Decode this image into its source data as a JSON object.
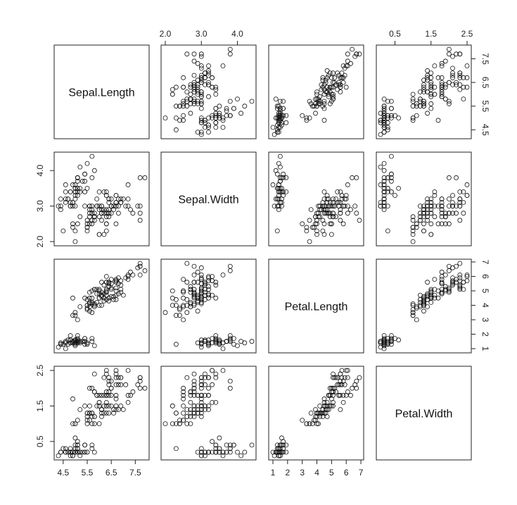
{
  "chart_data": {
    "type": "scatter",
    "variables": [
      "Sepal.Length",
      "Sepal.Width",
      "Petal.Length",
      "Petal.Width"
    ],
    "axes": {
      "Sepal.Length": {
        "range": [
          4.3,
          7.9
        ],
        "ticks": [
          4.5,
          5.5,
          6.5,
          7.5
        ],
        "tick_labels": [
          "4.5",
          "5.5",
          "6.5",
          "7.5"
        ]
      },
      "Sepal.Width": {
        "range": [
          2.0,
          4.4
        ],
        "ticks": [
          2.0,
          3.0,
          4.0
        ],
        "tick_labels": [
          "2.0",
          "3.0",
          "4.0"
        ]
      },
      "Petal.Length": {
        "range": [
          1.0,
          6.9
        ],
        "ticks": [
          1,
          2,
          3,
          4,
          5,
          6,
          7
        ],
        "tick_labels": [
          "1",
          "2",
          "3",
          "4",
          "5",
          "6",
          "7"
        ]
      },
      "Petal.Width": {
        "range": [
          0.1,
          2.5
        ],
        "ticks": [
          0.5,
          1.5,
          2.5
        ],
        "tick_labels": [
          "0.5",
          "1.5",
          "2.5"
        ]
      }
    },
    "tick_sides": {
      "Sepal.Length": "bottom-right",
      "Sepal.Width": "top-left",
      "Petal.Length": "bottom-right",
      "Petal.Width": "top-left"
    },
    "grid": false,
    "legend": "none",
    "marker": "open-circle",
    "observations": [
      [
        5.1,
        3.5,
        1.4,
        0.2
      ],
      [
        4.9,
        3.0,
        1.4,
        0.2
      ],
      [
        4.7,
        3.2,
        1.3,
        0.2
      ],
      [
        4.6,
        3.1,
        1.5,
        0.2
      ],
      [
        5.0,
        3.6,
        1.4,
        0.2
      ],
      [
        5.4,
        3.9,
        1.7,
        0.4
      ],
      [
        4.6,
        3.4,
        1.4,
        0.3
      ],
      [
        5.0,
        3.4,
        1.5,
        0.2
      ],
      [
        4.4,
        2.9,
        1.4,
        0.2
      ],
      [
        4.9,
        3.1,
        1.5,
        0.1
      ],
      [
        5.4,
        3.7,
        1.5,
        0.2
      ],
      [
        4.8,
        3.4,
        1.6,
        0.2
      ],
      [
        4.8,
        3.0,
        1.4,
        0.1
      ],
      [
        4.3,
        3.0,
        1.1,
        0.1
      ],
      [
        5.8,
        4.0,
        1.2,
        0.2
      ],
      [
        5.7,
        4.4,
        1.5,
        0.4
      ],
      [
        5.4,
        3.9,
        1.3,
        0.4
      ],
      [
        5.1,
        3.5,
        1.4,
        0.3
      ],
      [
        5.7,
        3.8,
        1.7,
        0.3
      ],
      [
        5.1,
        3.8,
        1.5,
        0.3
      ],
      [
        5.4,
        3.4,
        1.7,
        0.2
      ],
      [
        5.1,
        3.7,
        1.5,
        0.4
      ],
      [
        4.6,
        3.6,
        1.0,
        0.2
      ],
      [
        5.1,
        3.3,
        1.7,
        0.5
      ],
      [
        4.8,
        3.4,
        1.9,
        0.2
      ],
      [
        5.0,
        3.0,
        1.6,
        0.2
      ],
      [
        5.0,
        3.4,
        1.6,
        0.4
      ],
      [
        5.2,
        3.5,
        1.5,
        0.2
      ],
      [
        5.2,
        3.4,
        1.4,
        0.2
      ],
      [
        4.7,
        3.2,
        1.6,
        0.2
      ],
      [
        4.8,
        3.1,
        1.6,
        0.2
      ],
      [
        5.4,
        3.4,
        1.5,
        0.4
      ],
      [
        5.2,
        4.1,
        1.5,
        0.1
      ],
      [
        5.5,
        4.2,
        1.4,
        0.2
      ],
      [
        4.9,
        3.1,
        1.5,
        0.2
      ],
      [
        5.0,
        3.2,
        1.2,
        0.2
      ],
      [
        5.5,
        3.5,
        1.3,
        0.2
      ],
      [
        4.9,
        3.6,
        1.4,
        0.1
      ],
      [
        4.4,
        3.0,
        1.3,
        0.2
      ],
      [
        5.1,
        3.4,
        1.5,
        0.2
      ],
      [
        5.0,
        3.5,
        1.3,
        0.3
      ],
      [
        4.5,
        2.3,
        1.3,
        0.3
      ],
      [
        4.4,
        3.2,
        1.3,
        0.2
      ],
      [
        5.0,
        3.5,
        1.6,
        0.6
      ],
      [
        5.1,
        3.8,
        1.9,
        0.4
      ],
      [
        4.8,
        3.0,
        1.4,
        0.3
      ],
      [
        5.1,
        3.8,
        1.6,
        0.2
      ],
      [
        4.6,
        3.2,
        1.4,
        0.2
      ],
      [
        5.3,
        3.7,
        1.5,
        0.2
      ],
      [
        5.0,
        3.3,
        1.4,
        0.2
      ],
      [
        7.0,
        3.2,
        4.7,
        1.4
      ],
      [
        6.4,
        3.2,
        4.5,
        1.5
      ],
      [
        6.9,
        3.1,
        4.9,
        1.5
      ],
      [
        5.5,
        2.3,
        4.0,
        1.3
      ],
      [
        6.5,
        2.8,
        4.6,
        1.5
      ],
      [
        5.7,
        2.8,
        4.5,
        1.3
      ],
      [
        6.3,
        3.3,
        4.7,
        1.6
      ],
      [
        4.9,
        2.4,
        3.3,
        1.0
      ],
      [
        6.6,
        2.9,
        4.6,
        1.3
      ],
      [
        5.2,
        2.7,
        3.9,
        1.4
      ],
      [
        5.0,
        2.0,
        3.5,
        1.0
      ],
      [
        5.9,
        3.0,
        4.2,
        1.5
      ],
      [
        6.0,
        2.2,
        4.0,
        1.0
      ],
      [
        6.1,
        2.9,
        4.7,
        1.4
      ],
      [
        5.6,
        2.9,
        3.6,
        1.3
      ],
      [
        6.7,
        3.1,
        4.4,
        1.4
      ],
      [
        5.6,
        3.0,
        4.5,
        1.5
      ],
      [
        5.8,
        2.7,
        4.1,
        1.0
      ],
      [
        6.2,
        2.2,
        4.5,
        1.5
      ],
      [
        5.6,
        2.5,
        3.9,
        1.1
      ],
      [
        5.9,
        3.2,
        4.8,
        1.8
      ],
      [
        6.1,
        2.8,
        4.0,
        1.3
      ],
      [
        6.3,
        2.5,
        4.9,
        1.5
      ],
      [
        6.1,
        2.8,
        4.7,
        1.2
      ],
      [
        6.4,
        2.9,
        4.3,
        1.3
      ],
      [
        6.6,
        3.0,
        4.4,
        1.4
      ],
      [
        6.8,
        2.8,
        4.8,
        1.4
      ],
      [
        6.7,
        3.0,
        5.0,
        1.7
      ],
      [
        6.0,
        2.9,
        4.5,
        1.5
      ],
      [
        5.7,
        2.6,
        3.5,
        1.0
      ],
      [
        5.5,
        2.4,
        3.8,
        1.1
      ],
      [
        5.5,
        2.4,
        3.7,
        1.0
      ],
      [
        5.8,
        2.7,
        3.9,
        1.2
      ],
      [
        6.0,
        2.7,
        5.1,
        1.6
      ],
      [
        5.4,
        3.0,
        4.5,
        1.5
      ],
      [
        6.0,
        3.4,
        4.5,
        1.6
      ],
      [
        6.7,
        3.1,
        4.7,
        1.5
      ],
      [
        6.3,
        2.3,
        4.4,
        1.3
      ],
      [
        5.6,
        3.0,
        4.1,
        1.3
      ],
      [
        5.5,
        2.5,
        4.0,
        1.3
      ],
      [
        5.5,
        2.6,
        4.4,
        1.2
      ],
      [
        6.1,
        3.0,
        4.6,
        1.4
      ],
      [
        5.8,
        2.6,
        4.0,
        1.2
      ],
      [
        5.0,
        2.3,
        3.3,
        1.0
      ],
      [
        5.6,
        2.7,
        4.2,
        1.3
      ],
      [
        5.7,
        3.0,
        4.2,
        1.2
      ],
      [
        5.7,
        2.9,
        4.2,
        1.3
      ],
      [
        6.2,
        2.9,
        4.3,
        1.3
      ],
      [
        5.1,
        2.5,
        3.0,
        1.1
      ],
      [
        5.7,
        2.8,
        4.1,
        1.3
      ],
      [
        6.3,
        3.3,
        6.0,
        2.5
      ],
      [
        5.8,
        2.7,
        5.1,
        1.9
      ],
      [
        7.1,
        3.0,
        5.9,
        2.1
      ],
      [
        6.3,
        2.9,
        5.6,
        1.8
      ],
      [
        6.5,
        3.0,
        5.8,
        2.2
      ],
      [
        7.6,
        3.0,
        6.6,
        2.1
      ],
      [
        4.9,
        2.5,
        4.5,
        1.7
      ],
      [
        7.3,
        2.9,
        6.3,
        1.8
      ],
      [
        6.7,
        2.5,
        5.8,
        1.8
      ],
      [
        7.2,
        3.6,
        6.1,
        2.5
      ],
      [
        6.5,
        3.2,
        5.1,
        2.0
      ],
      [
        6.4,
        2.7,
        5.3,
        1.9
      ],
      [
        6.8,
        3.0,
        5.5,
        2.1
      ],
      [
        5.7,
        2.5,
        5.0,
        2.0
      ],
      [
        5.8,
        2.8,
        5.1,
        2.4
      ],
      [
        6.4,
        3.2,
        5.3,
        2.3
      ],
      [
        6.5,
        3.0,
        5.5,
        1.8
      ],
      [
        7.7,
        3.8,
        6.7,
        2.2
      ],
      [
        7.7,
        2.6,
        6.9,
        2.3
      ],
      [
        6.0,
        2.2,
        5.0,
        1.5
      ],
      [
        6.9,
        3.2,
        5.7,
        2.3
      ],
      [
        5.6,
        2.8,
        4.9,
        2.0
      ],
      [
        7.7,
        2.8,
        6.7,
        2.0
      ],
      [
        6.3,
        2.7,
        4.9,
        1.8
      ],
      [
        6.7,
        3.3,
        5.7,
        2.1
      ],
      [
        7.2,
        3.2,
        6.0,
        1.8
      ],
      [
        6.2,
        2.8,
        4.8,
        1.8
      ],
      [
        6.1,
        3.0,
        4.9,
        1.8
      ],
      [
        6.4,
        2.8,
        5.6,
        2.1
      ],
      [
        7.2,
        3.0,
        5.8,
        1.6
      ],
      [
        7.4,
        2.8,
        6.1,
        1.9
      ],
      [
        7.9,
        3.8,
        6.4,
        2.0
      ],
      [
        6.4,
        2.8,
        5.6,
        2.2
      ],
      [
        6.3,
        2.8,
        5.1,
        1.5
      ],
      [
        6.1,
        2.6,
        5.6,
        1.4
      ],
      [
        7.7,
        3.0,
        6.1,
        2.3
      ],
      [
        6.3,
        3.4,
        5.6,
        2.4
      ],
      [
        6.4,
        3.1,
        5.5,
        1.8
      ],
      [
        6.0,
        3.0,
        4.8,
        1.8
      ],
      [
        6.9,
        3.1,
        5.4,
        2.1
      ],
      [
        6.7,
        3.1,
        5.6,
        2.4
      ],
      [
        6.9,
        3.1,
        5.1,
        2.3
      ],
      [
        5.8,
        2.7,
        5.1,
        1.9
      ],
      [
        6.8,
        3.2,
        5.9,
        2.3
      ],
      [
        6.7,
        3.3,
        5.7,
        2.5
      ],
      [
        6.7,
        3.0,
        5.2,
        2.3
      ],
      [
        6.3,
        2.5,
        5.0,
        1.9
      ],
      [
        6.5,
        3.0,
        5.2,
        2.0
      ],
      [
        6.2,
        3.4,
        5.4,
        2.3
      ],
      [
        5.9,
        3.0,
        5.1,
        1.8
      ]
    ]
  }
}
